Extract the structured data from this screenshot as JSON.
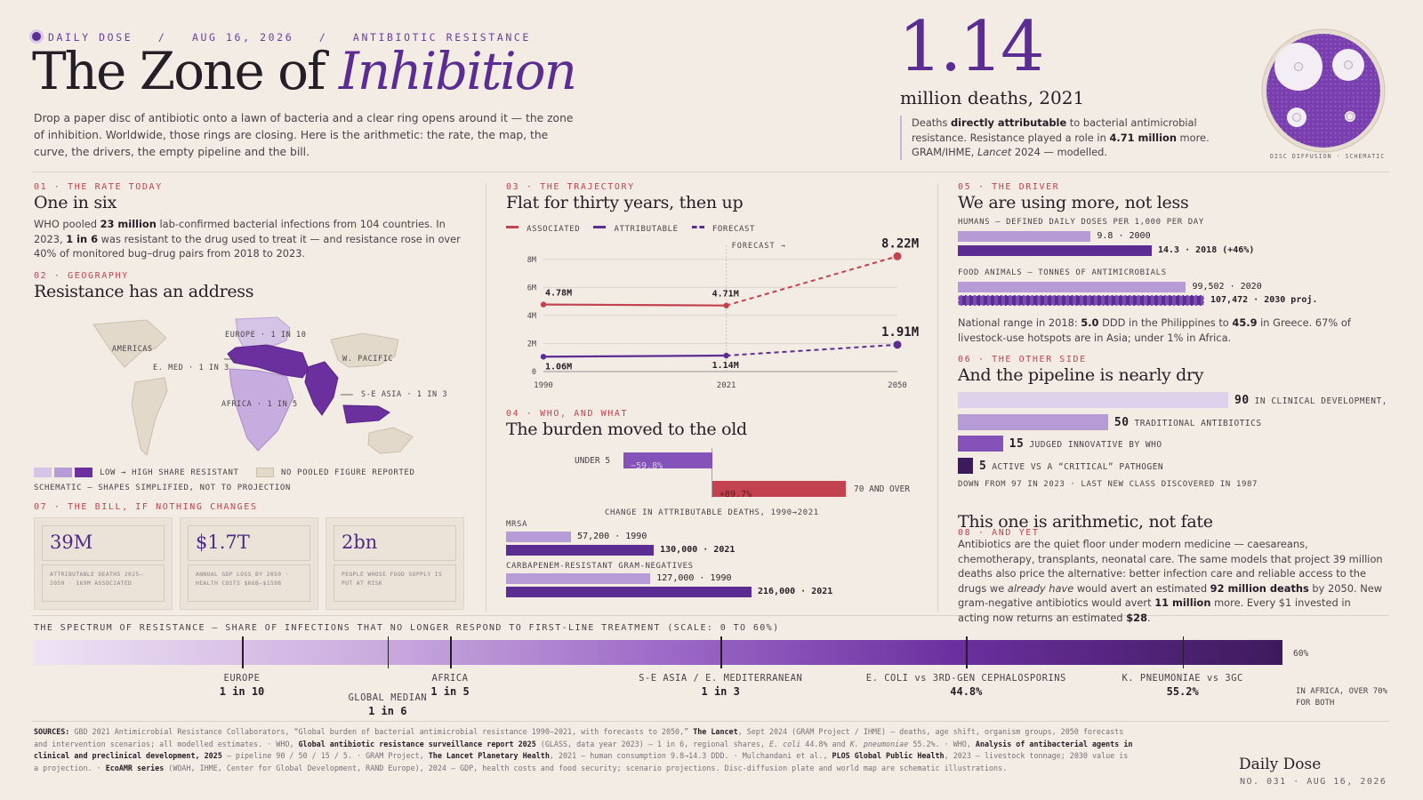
{
  "header": {
    "kicker_parts": [
      "DAILY DOSE",
      "/",
      "AUG 16, 2026",
      "/",
      "ANTIBIOTIC RESISTANCE"
    ],
    "title_plain": "The Zone of ",
    "title_italic": "Inhibition",
    "dek": "Drop a paper disc of antibiotic onto a lawn of bacteria and a clear ring opens around it — the zone of inhibition. Worldwide, those rings are closing. Here is the arithmetic: the rate, the map, the curve, the drivers, the empty pipeline and the bill."
  },
  "hero": {
    "number": "1.14",
    "unit": "million deaths, 2021",
    "note_1": "Deaths ",
    "note_b1": "directly attributable",
    "note_2": " to bacterial antimicrobial resistance. Resistance played a role in ",
    "note_b2": "4.71 million",
    "note_3": " more. GRAM/IHME, ",
    "note_i": "Lancet",
    "note_4": " 2024 — modelled.",
    "disc_caption": "DISC DIFFUSION · SCHEMATIC"
  },
  "s01": {
    "kicker": "01 · THE RATE TODAY",
    "title": "One in six",
    "t1": "WHO pooled ",
    "b1": "23 million",
    "t2": " lab-confirmed bacterial infections from 104 countries. In 2023, ",
    "b2": "1 in 6",
    "t3": " was resistant to the drug used to treat it — and resistance rose in over 40% of monitored bug–drug pairs from 2018 to 2023."
  },
  "s02": {
    "kicker": "02 · GEOGRAPHY",
    "title": "Resistance has an address",
    "labels": {
      "americas": "AMERICAS",
      "europe": "EUROPE · 1 IN 10",
      "emed": "E. MED · 1 IN 3",
      "wpacific": "W. PACIFIC",
      "seasia": "S-E ASIA · 1 IN 3",
      "africa": "AFRICA · 1 IN 5"
    },
    "legend_scale": "LOW → HIGH SHARE RESISTANT",
    "legend_none": "NO POOLED FIGURE REPORTED",
    "note": "SCHEMATIC — SHAPES SIMPLIFIED, NOT TO PROJECTION",
    "colors": {
      "low": "#d6c4e6",
      "mid": "#b79bd6",
      "high": "#6b2f9e",
      "none": "#e3d9ca"
    }
  },
  "s07": {
    "kicker": "07 · THE BILL, IF NOTHING CHANGES",
    "cards": [
      {
        "value": "39M",
        "desc": "ATTRIBUTABLE DEATHS 2025–2050 · 169M ASSOCIATED"
      },
      {
        "value": "$1.7T",
        "desc": "ANNUAL GDP LOSS BY 2050 · HEALTH COSTS $66B–$159B"
      },
      {
        "value": "2bn",
        "desc": "PEOPLE WHOSE FOOD SUPPLY IS PUT AT RISK"
      }
    ]
  },
  "s03": {
    "kicker": "03 · THE TRAJECTORY",
    "title": "Flat for thirty years, then up",
    "legend": [
      "ASSOCIATED",
      "ATTRIBUTABLE",
      "FORECAST"
    ],
    "forecast_tag": "FORECAST →"
  },
  "chart_data": {
    "type": "line",
    "x": [
      1990,
      2021,
      2050
    ],
    "x_ticks": [
      "1990",
      "2021",
      "2050"
    ],
    "y_ticks": [
      "0",
      "2M",
      "4M",
      "6M",
      "8M"
    ],
    "ylim": [
      0,
      9
    ],
    "series": [
      {
        "name": "ASSOCIATED",
        "values": [
          4.78,
          4.71,
          8.22
        ],
        "labels": [
          "4.78M",
          "4.71M",
          "8.22M"
        ],
        "color": "#c2434f"
      },
      {
        "name": "ATTRIBUTABLE",
        "values": [
          1.06,
          1.14,
          1.91
        ],
        "labels": [
          "1.06M",
          "1.14M",
          "1.91M"
        ],
        "color": "#5b2c91"
      }
    ],
    "forecast_from": 2021
  },
  "s04": {
    "kicker": "04 · WHO, AND WHAT",
    "title": "The burden moved to the old",
    "under5_label": "UNDER 5",
    "under5_value": "−59.8%",
    "under5_pct": -59.8,
    "old_label": "70 AND OVER",
    "old_value": "+89.7%",
    "old_pct": 89.7,
    "axis_caption": "CHANGE IN ATTRIBUTABLE DEATHS, 1990→2021",
    "mrsa_label": "MRSA",
    "mrsa_1990": "57,200 · 1990",
    "mrsa_1990_v": 57200,
    "mrsa_2021": "130,000 · 2021",
    "mrsa_2021_v": 130000,
    "carb_label": "CARBAPENEM-RESISTANT GRAM-NEGATIVES",
    "carb_1990": "127,000 · 1990",
    "carb_1990_v": 127000,
    "carb_2021": "216,000 · 2021",
    "carb_2021_v": 216000
  },
  "s05": {
    "kicker": "05 · THE DRIVER",
    "title": "We are using more, not less",
    "humans_label": "HUMANS — DEFINED DAILY DOSES PER 1,000 PER DAY",
    "h2000": "9.8 · 2000",
    "h2000_v": 9.8,
    "h2018": "14.3 · 2018  (+46%)",
    "h2018_v": 14.3,
    "animals_label": "FOOD ANIMALS — TONNES OF ANTIMICROBIALS",
    "a2020": "99,502 · 2020",
    "a2020_v": 99502,
    "a2030": "107,472 · 2030 proj.",
    "a2030_v": 107472,
    "n1": "National range in 2018: ",
    "nb1": "5.0",
    "n2": " DDD in the Philippines to ",
    "nb2": "45.9",
    "n3": " in Greece. 67% of livestock-use hotspots are in Asia; under 1% in Africa."
  },
  "s06": {
    "kicker": "06 · THE OTHER SIDE",
    "title": "And the pipeline is nearly dry",
    "bars": [
      {
        "value": 90,
        "label": "IN CLINICAL DEVELOPMENT,",
        "color": "#ddd0ea"
      },
      {
        "value": 50,
        "label": "TRADITIONAL ANTIBIOTICS",
        "color": "#b79bd6"
      },
      {
        "value": 15,
        "label": "JUDGED INNOVATIVE BY WHO",
        "color": "#8452b8"
      },
      {
        "value": 5,
        "label": "ACTIVE VS A “CRITICAL” PATHOGEN",
        "color": "#3d1a5c"
      }
    ],
    "footnote": "DOWN FROM 97 IN 2023 · LAST NEW CLASS DISCOVERED IN 1987"
  },
  "s08": {
    "kicker": "08 · AND YET",
    "title": "This one is arithmetic, not fate",
    "t1": "Antibiotics are the quiet floor under modern medicine — caesareans, chemotherapy, transplants, neonatal care. The same models that project 39 million deaths also price the alternative: better infection care and reliable access to the drugs we ",
    "i1": "already have",
    "t2": " would avert an estimated ",
    "b1": "92 million deaths",
    "t3": " by 2050. New gram-negative antibiotics would avert ",
    "b2": "11 million",
    "t4": " more. Every $1 invested in acting now returns an estimated ",
    "b3": "$28",
    "t5": "."
  },
  "spectrum": {
    "title": "THE SPECTRUM OF RESISTANCE — SHARE OF INFECTIONS THAT NO LONGER RESPOND TO FIRST-LINE TREATMENT (SCALE: 0 TO 60%)",
    "max_label": "60%",
    "max": 60,
    "markers": [
      {
        "pct": 10,
        "a": "EUROPE",
        "b": "1 in 10",
        "low": false
      },
      {
        "pct": 17,
        "a": "GLOBAL MEDIAN",
        "b": "1 in 6",
        "low": true
      },
      {
        "pct": 20,
        "a": "AFRICA",
        "b": "1 in 5",
        "low": false
      },
      {
        "pct": 33,
        "a": "S-E ASIA / E. MEDITERRANEAN",
        "b": "1 in 3",
        "low": false
      },
      {
        "pct": 44.8,
        "a": "E. COLI vs 3RD-GEN CEPHALOSPORINS",
        "b": "44.8%",
        "low": false
      },
      {
        "pct": 55.2,
        "a": "K. PNEUMONIAE vs 3GC",
        "b": "55.2%",
        "low": false
      }
    ],
    "africa_note": "IN AFRICA, OVER 70% FOR BOTH"
  },
  "sources": {
    "label": "SOURCES:",
    "s1": " GBD 2021 Antimicrobial Resistance Collaborators, “Global burden of bacterial antimicrobial resistance 1990–2021, with forecasts to 2050,” ",
    "b1": "The Lancet",
    "s2": ", Sept 2024 (GRAM Project / IHME) — deaths, age shift, organism groups, 2050 forecasts and intervention scenarios; all modelled estimates. · WHO, ",
    "b2": "Global antibiotic resistance surveillance report 2025",
    "s3": " (GLASS, data year 2023) — 1 in 6, regional shares, ",
    "i1": "E. coli",
    "s4": " 44.8% and ",
    "i2": "K. pneumoniae",
    "s5": " 55.2%. · WHO, ",
    "b3": "Analysis of antibacterial agents in clinical and preclinical development, 2025",
    "s6": " — pipeline 90 / 50 / 15 / 5. · GRAM Project, ",
    "b4": "The Lancet Planetary Health",
    "s7": ", 2021 — human consumption 9.8→14.3 DDD. · Mulchandani et al., ",
    "b5": "PLOS Global Public Health",
    "s8": ", 2023 — livestock tonnage; 2030 value is a projection. · ",
    "b6": "EcoAMR series",
    "s9": " (WOAH, IHME, Center for Global Development, RAND Europe), 2024 — GDP, health costs and food security; scenario projections. Disc-diffusion plate and world map are schematic illustrations."
  },
  "footer": {
    "brand": "Daily Dose",
    "issue": "NO. 031 · AUG 16, 2026"
  }
}
